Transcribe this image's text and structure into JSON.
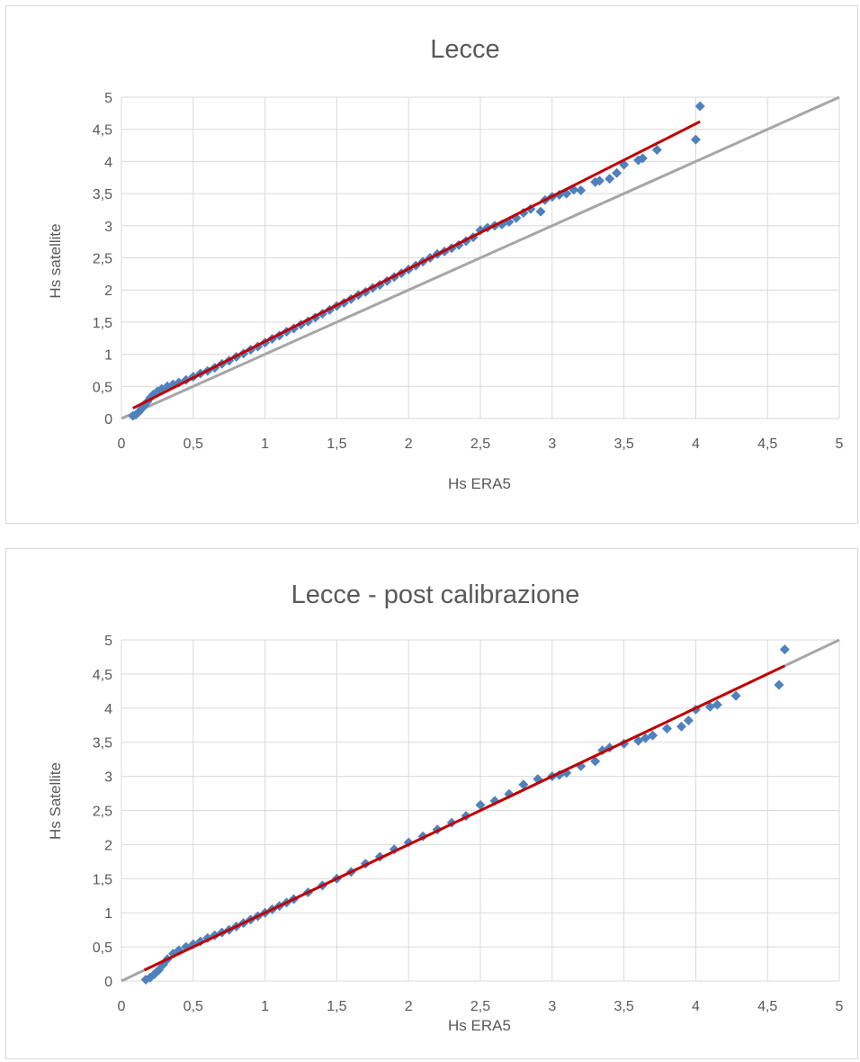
{
  "charts": [
    {
      "type": "scatter",
      "title": "Lecce",
      "xlabel": "Hs ERA5",
      "ylabel": "Hs satellite",
      "xlim": [
        0,
        5
      ],
      "ylim": [
        0,
        5
      ],
      "xticks": [
        "0",
        "0,5",
        "1",
        "1,5",
        "2",
        "2,5",
        "3",
        "3,5",
        "4",
        "4,5",
        "5"
      ],
      "yticks": [
        "0",
        "0,5",
        "1",
        "1,5",
        "2",
        "2,5",
        "3",
        "3,5",
        "4",
        "4,5",
        "5"
      ],
      "grid": true,
      "colors": {
        "points": "#4f81bd",
        "trend": "#c00000",
        "reference": "#a6a6a6",
        "grid": "#d9d9d9"
      },
      "reference_line": {
        "x": [
          0,
          5
        ],
        "y": [
          0,
          5
        ]
      },
      "trend_line": {
        "x": [
          0.08,
          4.03
        ],
        "y": [
          0.16,
          4.62
        ]
      },
      "points": [
        [
          0.08,
          0.04
        ],
        [
          0.1,
          0.06
        ],
        [
          0.12,
          0.1
        ],
        [
          0.14,
          0.15
        ],
        [
          0.16,
          0.2
        ],
        [
          0.18,
          0.26
        ],
        [
          0.2,
          0.32
        ],
        [
          0.22,
          0.37
        ],
        [
          0.25,
          0.42
        ],
        [
          0.28,
          0.46
        ],
        [
          0.32,
          0.5
        ],
        [
          0.36,
          0.53
        ],
        [
          0.4,
          0.56
        ],
        [
          0.45,
          0.6
        ],
        [
          0.5,
          0.65
        ],
        [
          0.55,
          0.7
        ],
        [
          0.6,
          0.74
        ],
        [
          0.65,
          0.79
        ],
        [
          0.7,
          0.85
        ],
        [
          0.75,
          0.9
        ],
        [
          0.8,
          0.96
        ],
        [
          0.85,
          1.01
        ],
        [
          0.9,
          1.07
        ],
        [
          0.95,
          1.12
        ],
        [
          1.0,
          1.18
        ],
        [
          1.05,
          1.24
        ],
        [
          1.1,
          1.29
        ],
        [
          1.15,
          1.35
        ],
        [
          1.2,
          1.4
        ],
        [
          1.25,
          1.46
        ],
        [
          1.3,
          1.51
        ],
        [
          1.35,
          1.57
        ],
        [
          1.4,
          1.63
        ],
        [
          1.45,
          1.69
        ],
        [
          1.5,
          1.75
        ],
        [
          1.55,
          1.8
        ],
        [
          1.6,
          1.86
        ],
        [
          1.65,
          1.92
        ],
        [
          1.7,
          1.97
        ],
        [
          1.75,
          2.03
        ],
        [
          1.8,
          2.08
        ],
        [
          1.85,
          2.14
        ],
        [
          1.9,
          2.2
        ],
        [
          1.95,
          2.26
        ],
        [
          2.0,
          2.32
        ],
        [
          2.05,
          2.38
        ],
        [
          2.1,
          2.44
        ],
        [
          2.15,
          2.5
        ],
        [
          2.2,
          2.56
        ],
        [
          2.25,
          2.6
        ],
        [
          2.3,
          2.65
        ],
        [
          2.35,
          2.7
        ],
        [
          2.4,
          2.76
        ],
        [
          2.45,
          2.82
        ],
        [
          2.5,
          2.93
        ],
        [
          2.55,
          2.97
        ],
        [
          2.6,
          3.0
        ],
        [
          2.65,
          3.02
        ],
        [
          2.7,
          3.06
        ],
        [
          2.75,
          3.12
        ],
        [
          2.8,
          3.2
        ],
        [
          2.85,
          3.26
        ],
        [
          2.92,
          3.22
        ],
        [
          2.95,
          3.4
        ],
        [
          3.0,
          3.45
        ],
        [
          3.05,
          3.48
        ],
        [
          3.1,
          3.5
        ],
        [
          3.15,
          3.56
        ],
        [
          3.2,
          3.55
        ],
        [
          3.3,
          3.68
        ],
        [
          3.33,
          3.7
        ],
        [
          3.4,
          3.73
        ],
        [
          3.45,
          3.82
        ],
        [
          3.5,
          3.95
        ],
        [
          3.6,
          4.02
        ],
        [
          3.63,
          4.05
        ],
        [
          3.73,
          4.18
        ],
        [
          4.0,
          4.34
        ],
        [
          4.03,
          4.86
        ]
      ]
    },
    {
      "type": "scatter",
      "title": "Lecce - post calibrazione",
      "xlabel": "Hs ERA5",
      "ylabel": "Hs Satellite",
      "xlim": [
        0,
        5
      ],
      "ylim": [
        0,
        5
      ],
      "xticks": [
        "0",
        "0,5",
        "1",
        "1,5",
        "2",
        "2,5",
        "3",
        "3,5",
        "4",
        "4,5",
        "5"
      ],
      "yticks": [
        "0",
        "0,5",
        "1",
        "1,5",
        "2",
        "2,5",
        "3",
        "3,5",
        "4",
        "4,5",
        "5"
      ],
      "grid": true,
      "colors": {
        "points": "#4f81bd",
        "trend": "#c00000",
        "reference": "#a6a6a6",
        "grid": "#d9d9d9"
      },
      "reference_line": {
        "x": [
          0,
          5
        ],
        "y": [
          0,
          5
        ]
      },
      "trend_line": {
        "x": [
          0.16,
          4.62
        ],
        "y": [
          0.16,
          4.62
        ]
      },
      "points": [
        [
          0.17,
          0.02
        ],
        [
          0.2,
          0.05
        ],
        [
          0.23,
          0.1
        ],
        [
          0.26,
          0.16
        ],
        [
          0.29,
          0.24
        ],
        [
          0.32,
          0.32
        ],
        [
          0.36,
          0.4
        ],
        [
          0.4,
          0.45
        ],
        [
          0.45,
          0.5
        ],
        [
          0.5,
          0.54
        ],
        [
          0.55,
          0.58
        ],
        [
          0.6,
          0.63
        ],
        [
          0.65,
          0.67
        ],
        [
          0.7,
          0.71
        ],
        [
          0.75,
          0.75
        ],
        [
          0.8,
          0.8
        ],
        [
          0.85,
          0.85
        ],
        [
          0.9,
          0.9
        ],
        [
          0.95,
          0.95
        ],
        [
          1.0,
          1.0
        ],
        [
          1.05,
          1.05
        ],
        [
          1.1,
          1.1
        ],
        [
          1.15,
          1.15
        ],
        [
          1.2,
          1.2
        ],
        [
          1.3,
          1.3
        ],
        [
          1.4,
          1.4
        ],
        [
          1.5,
          1.5
        ],
        [
          1.6,
          1.6
        ],
        [
          1.7,
          1.72
        ],
        [
          1.8,
          1.82
        ],
        [
          1.9,
          1.93
        ],
        [
          2.0,
          2.03
        ],
        [
          2.1,
          2.12
        ],
        [
          2.2,
          2.22
        ],
        [
          2.3,
          2.32
        ],
        [
          2.4,
          2.42
        ],
        [
          2.5,
          2.58
        ],
        [
          2.6,
          2.64
        ],
        [
          2.7,
          2.74
        ],
        [
          2.8,
          2.88
        ],
        [
          2.9,
          2.96
        ],
        [
          3.0,
          3.0
        ],
        [
          3.05,
          3.02
        ],
        [
          3.1,
          3.05
        ],
        [
          3.2,
          3.15
        ],
        [
          3.3,
          3.22
        ],
        [
          3.35,
          3.38
        ],
        [
          3.4,
          3.42
        ],
        [
          3.5,
          3.48
        ],
        [
          3.6,
          3.52
        ],
        [
          3.65,
          3.56
        ],
        [
          3.7,
          3.6
        ],
        [
          3.8,
          3.7
        ],
        [
          3.9,
          3.73
        ],
        [
          3.95,
          3.82
        ],
        [
          4.0,
          3.98
        ],
        [
          4.1,
          4.02
        ],
        [
          4.15,
          4.05
        ],
        [
          4.28,
          4.18
        ],
        [
          4.58,
          4.34
        ],
        [
          4.62,
          4.86
        ]
      ]
    }
  ]
}
